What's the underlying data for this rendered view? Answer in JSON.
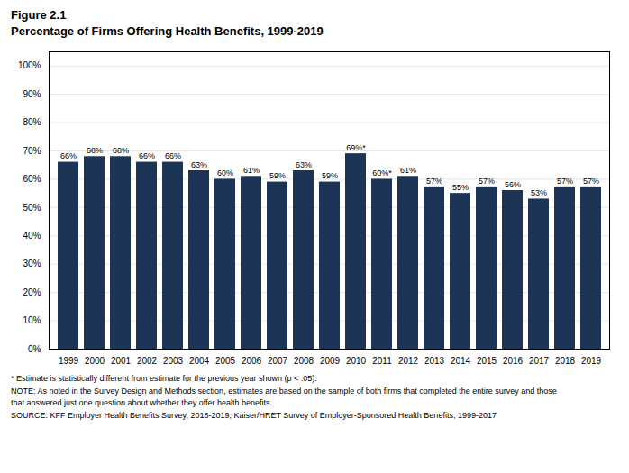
{
  "chart_data": {
    "type": "bar",
    "subtitle": "Figure 2.1",
    "title": "Percentage of Firms Offering Health Benefits, 1999-2019",
    "categories": [
      "1999",
      "2000",
      "2001",
      "2002",
      "2003",
      "2004",
      "2005",
      "2006",
      "2007",
      "2008",
      "2009",
      "2010",
      "2011",
      "2012",
      "2013",
      "2014",
      "2015",
      "2016",
      "2017",
      "2018",
      "2019"
    ],
    "values": [
      66,
      68,
      68,
      66,
      66,
      63,
      60,
      61,
      59,
      63,
      59,
      69,
      60,
      61,
      57,
      55,
      57,
      56,
      53,
      57,
      57
    ],
    "value_labels": [
      "66%",
      "68%",
      "68%",
      "66%",
      "66%",
      "63%",
      "60%",
      "61%",
      "59%",
      "63%",
      "59%",
      "69%*",
      "60%*",
      "61%",
      "57%",
      "55%",
      "57%",
      "56%",
      "53%",
      "57%",
      "57%"
    ],
    "data_labels": true,
    "color": "#1c3557",
    "ylim": [
      0,
      105
    ],
    "yticks": [
      {
        "value": 0,
        "label": "0%"
      },
      {
        "value": 10,
        "label": "10%"
      },
      {
        "value": 20,
        "label": "20%"
      },
      {
        "value": 30,
        "label": "30%"
      },
      {
        "value": 40,
        "label": "40%"
      },
      {
        "value": 50,
        "label": "50%"
      },
      {
        "value": 60,
        "label": "60%"
      },
      {
        "value": 70,
        "label": "70%"
      },
      {
        "value": 80,
        "label": "80%"
      },
      {
        "value": 90,
        "label": "90%"
      },
      {
        "value": 100,
        "label": "100%"
      }
    ],
    "grid": true,
    "annotations": [
      "* Estimate is statistically different from estimate for the previous year shown (p < .05).",
      "NOTE: As noted in the Survey Design and Methods section, estimates are based on the sample of both firms that completed the entire survey and those",
      "that answered just one question about whether they offer health benefits.",
      "SOURCE: KFF Employer Health Benefits Survey, 2018-2019; Kaiser/HRET Survey of Employer-Sponsored Health Benefits, 1999-2017"
    ]
  }
}
